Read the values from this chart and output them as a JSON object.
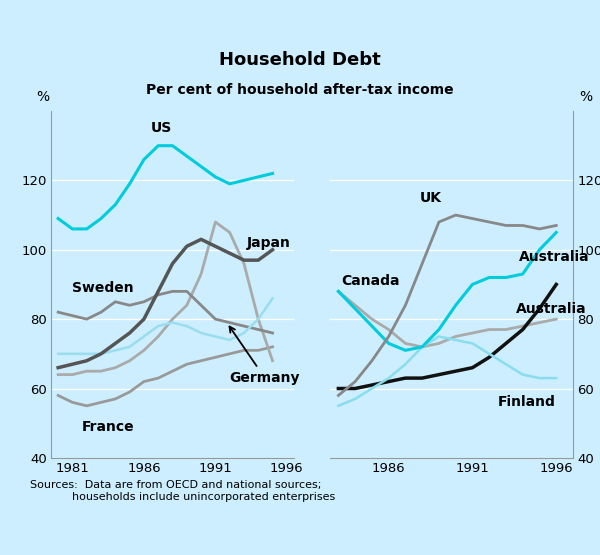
{
  "title": "Household Debt",
  "subtitle": "Per cent of household after-tax income",
  "source": "Sources:  Data are from OECD and national sources;\n            households include unincorporated enterprises",
  "background_color": "#cceeff",
  "ylim": [
    40,
    140
  ],
  "yticks": [
    40,
    60,
    80,
    100,
    120
  ],
  "left_panel": {
    "xlim": [
      1979.5,
      1996.5
    ],
    "xticks": [
      1981,
      1986,
      1991,
      1996
    ],
    "US": {
      "x": [
        1980,
        1981,
        1982,
        1983,
        1984,
        1985,
        1986,
        1987,
        1988,
        1989,
        1990,
        1991,
        1992,
        1993,
        1994,
        1995
      ],
      "y": [
        109,
        106,
        106,
        109,
        113,
        119,
        126,
        130,
        130,
        127,
        124,
        121,
        119,
        120,
        121,
        122
      ],
      "color": "#00ccdd",
      "lw": 2.2
    },
    "Japan": {
      "x": [
        1980,
        1981,
        1982,
        1983,
        1984,
        1985,
        1986,
        1987,
        1988,
        1989,
        1990,
        1991,
        1992,
        1993,
        1994,
        1995
      ],
      "y": [
        66,
        67,
        68,
        70,
        73,
        76,
        80,
        88,
        96,
        101,
        103,
        101,
        99,
        97,
        97,
        100
      ],
      "color": "#555555",
      "lw": 2.5
    },
    "Sweden": {
      "x": [
        1980,
        1981,
        1982,
        1983,
        1984,
        1985,
        1986,
        1987,
        1988,
        1989,
        1990,
        1991,
        1992,
        1993,
        1994,
        1995
      ],
      "y": [
        82,
        81,
        80,
        82,
        85,
        84,
        85,
        87,
        88,
        88,
        84,
        80,
        79,
        78,
        77,
        76
      ],
      "color": "#888888",
      "lw": 2.0
    },
    "Germany": {
      "x": [
        1980,
        1981,
        1982,
        1983,
        1984,
        1985,
        1986,
        1987,
        1988,
        1989,
        1990,
        1991,
        1992,
        1993,
        1994,
        1995
      ],
      "y": [
        64,
        64,
        65,
        65,
        66,
        68,
        71,
        75,
        80,
        84,
        93,
        108,
        105,
        96,
        80,
        68
      ],
      "color": "#aaaaaa",
      "lw": 2.0
    },
    "France": {
      "x": [
        1980,
        1981,
        1982,
        1983,
        1984,
        1985,
        1986,
        1987,
        1988,
        1989,
        1990,
        1991,
        1992,
        1993,
        1994,
        1995
      ],
      "y": [
        58,
        56,
        55,
        56,
        57,
        59,
        62,
        63,
        65,
        67,
        68,
        69,
        70,
        71,
        71,
        72
      ],
      "color": "#999999",
      "lw": 2.0
    },
    "LightLine": {
      "x": [
        1980,
        1981,
        1982,
        1983,
        1984,
        1985,
        1986,
        1987,
        1988,
        1989,
        1990,
        1991,
        1992,
        1993,
        1994,
        1995
      ],
      "y": [
        70,
        70,
        70,
        70,
        71,
        72,
        75,
        78,
        79,
        78,
        76,
        75,
        74,
        76,
        80,
        86
      ],
      "color": "#99ddee",
      "lw": 1.8
    }
  },
  "right_panel": {
    "xlim": [
      1982.5,
      1997.0
    ],
    "xticks": [
      1986,
      1991,
      1996
    ],
    "UK": {
      "x": [
        1983,
        1984,
        1985,
        1986,
        1987,
        1988,
        1989,
        1990,
        1991,
        1992,
        1993,
        1994,
        1995,
        1996
      ],
      "y": [
        58,
        62,
        68,
        75,
        84,
        96,
        108,
        110,
        109,
        108,
        107,
        107,
        106,
        107
      ],
      "color": "#888888",
      "lw": 2.0
    },
    "Canada": {
      "x": [
        1983,
        1984,
        1985,
        1986,
        1987,
        1988,
        1989,
        1990,
        1991,
        1992,
        1993,
        1994,
        1995,
        1996
      ],
      "y": [
        88,
        84,
        80,
        77,
        73,
        72,
        73,
        75,
        76,
        77,
        77,
        78,
        79,
        80
      ],
      "color": "#aaaaaa",
      "lw": 2.0
    },
    "Australia_black": {
      "x": [
        1983,
        1984,
        1985,
        1986,
        1987,
        1988,
        1989,
        1990,
        1991,
        1992,
        1993,
        1994,
        1995,
        1996
      ],
      "y": [
        60,
        60,
        61,
        62,
        63,
        63,
        64,
        65,
        66,
        69,
        73,
        77,
        83,
        90
      ],
      "color": "#111111",
      "lw": 2.5
    },
    "Finland": {
      "x": [
        1983,
        1984,
        1985,
        1986,
        1987,
        1988,
        1989,
        1990,
        1991,
        1992,
        1993,
        1994,
        1995,
        1996
      ],
      "y": [
        55,
        57,
        60,
        63,
        67,
        72,
        75,
        74,
        73,
        70,
        67,
        64,
        63,
        63
      ],
      "color": "#88ddee",
      "lw": 1.8
    },
    "Australia_cyan": {
      "x": [
        1983,
        1984,
        1985,
        1986,
        1987,
        1988,
        1989,
        1990,
        1991,
        1992,
        1993,
        1994,
        1995,
        1996
      ],
      "y": [
        88,
        83,
        78,
        73,
        71,
        72,
        77,
        84,
        90,
        92,
        92,
        93,
        100,
        105
      ],
      "color": "#00ccdd",
      "lw": 2.2
    }
  }
}
